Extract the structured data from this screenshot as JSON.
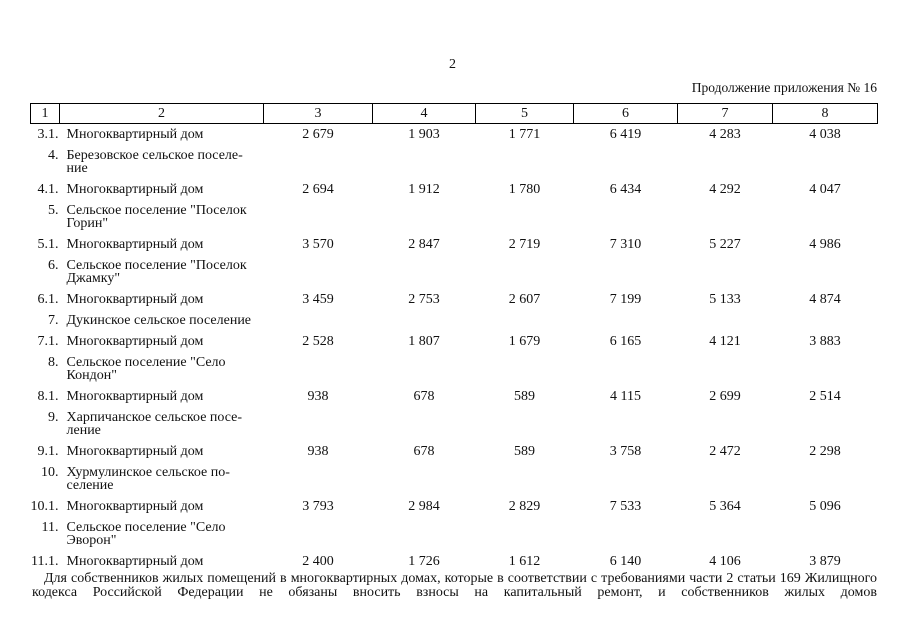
{
  "page": {
    "page_number": "2",
    "continuation_note": "Продолжение приложения № 16"
  },
  "table": {
    "header": [
      "1",
      "2",
      "3",
      "4",
      "5",
      "6",
      "7",
      "8"
    ],
    "rows": [
      {
        "num": "3.1.",
        "name": "Многоквартирный дом",
        "values": [
          "2 679",
          "1 903",
          "1 771",
          "6 419",
          "4 283",
          "4 038"
        ]
      },
      {
        "num": "4.",
        "name": "Березовское сельское поселе-\nние",
        "values": [
          "",
          "",
          "",
          "",
          "",
          ""
        ]
      },
      {
        "num": "4.1.",
        "name": "Многоквартирный дом",
        "values": [
          "2 694",
          "1 912",
          "1 780",
          "6 434",
          "4 292",
          "4 047"
        ]
      },
      {
        "num": "5.",
        "name": "Сельское поселение \"Поселок\nГорин\"",
        "values": [
          "",
          "",
          "",
          "",
          "",
          ""
        ]
      },
      {
        "num": "5.1.",
        "name": "Многоквартирный дом",
        "values": [
          "3 570",
          "2 847",
          "2 719",
          "7 310",
          "5 227",
          "4 986"
        ]
      },
      {
        "num": "6.",
        "name": "Сельское поселение \"Поселок\nДжамку\"",
        "values": [
          "",
          "",
          "",
          "",
          "",
          ""
        ]
      },
      {
        "num": "6.1.",
        "name": "Многоквартирный дом",
        "values": [
          "3 459",
          "2 753",
          "2 607",
          "7 199",
          "5 133",
          "4 874"
        ]
      },
      {
        "num": "7.",
        "name": "Дукинское сельское поселение",
        "values": [
          "",
          "",
          "",
          "",
          "",
          ""
        ]
      },
      {
        "num": "7.1.",
        "name": "Многоквартирный дом",
        "values": [
          "2 528",
          "1 807",
          "1 679",
          "6 165",
          "4 121",
          "3 883"
        ]
      },
      {
        "num": "8.",
        "name": "Сельское поселение \"Село\nКондон\"",
        "values": [
          "",
          "",
          "",
          "",
          "",
          ""
        ]
      },
      {
        "num": "8.1.",
        "name": "Многоквартирный дом",
        "values": [
          "938",
          "678",
          "589",
          "4 115",
          "2 699",
          "2 514"
        ]
      },
      {
        "num": "9.",
        "name": "Харпичанское сельское посе-\nление",
        "values": [
          "",
          "",
          "",
          "",
          "",
          ""
        ]
      },
      {
        "num": "9.1.",
        "name": "Многоквартирный дом",
        "values": [
          "938",
          "678",
          "589",
          "3 758",
          "2 472",
          "2 298"
        ]
      },
      {
        "num": "10.",
        "name": "Хурмулинское сельское по-\nселение",
        "values": [
          "",
          "",
          "",
          "",
          "",
          ""
        ]
      },
      {
        "num": "10.1.",
        "name": "Многоквартирный дом",
        "values": [
          "3 793",
          "2 984",
          "2 829",
          "7 533",
          "5 364",
          "5 096"
        ]
      },
      {
        "num": "11.",
        "name": "Сельское поселение \"Село\nЭворон\"",
        "values": [
          "",
          "",
          "",
          "",
          "",
          ""
        ]
      },
      {
        "num": "11.1.",
        "name": "Многоквартирный дом",
        "values": [
          "2 400",
          "1 726",
          "1 612",
          "6 140",
          "4 106",
          "3 879"
        ]
      }
    ]
  },
  "footer": {
    "paragraph": "Для собственников жилых помещений в многоквартирных домах, которые в соответствии с требованиями части 2 статьи 169 Жилищного кодекса Российской Федерации не обязаны вносить взносы на капитальный ремонт, и собственников жилых домов"
  }
}
